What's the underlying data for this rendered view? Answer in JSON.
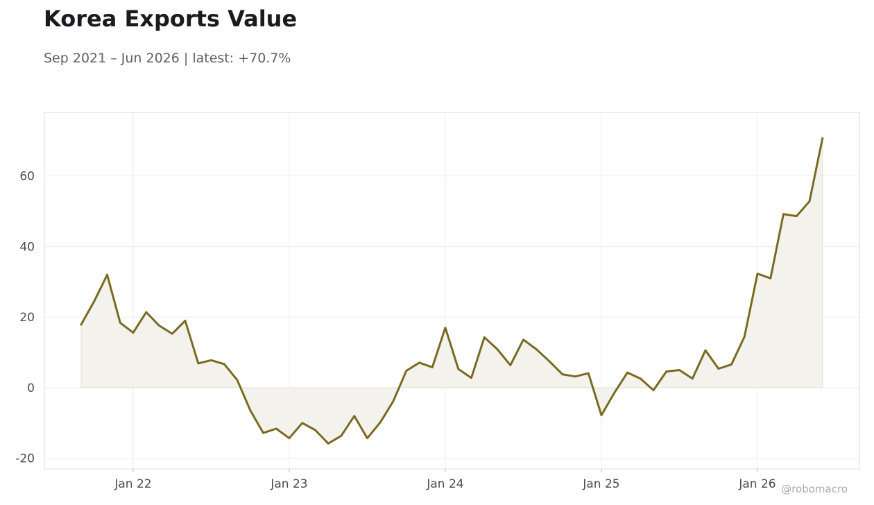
{
  "header": {
    "title": "Korea Exports Value",
    "subtitle": "Sep 2021 – Jun 2026 | latest: +70.7%"
  },
  "watermark": "@robomacro",
  "colors": {
    "line": "#7a6a21",
    "fill": "#f4f2ed",
    "grid": "#ececec",
    "frame": "#dddddd"
  },
  "chart_data": {
    "type": "area",
    "x_start": "2021-09",
    "x": [
      "2021-09",
      "2021-10",
      "2021-11",
      "2021-12",
      "2022-01",
      "2022-02",
      "2022-03",
      "2022-04",
      "2022-05",
      "2022-06",
      "2022-07",
      "2022-08",
      "2022-09",
      "2022-10",
      "2022-11",
      "2022-12",
      "2023-01",
      "2023-02",
      "2023-03",
      "2023-04",
      "2023-05",
      "2023-06",
      "2023-07",
      "2023-08",
      "2023-09",
      "2023-10",
      "2023-11",
      "2023-12",
      "2024-01",
      "2024-02",
      "2024-03",
      "2024-04",
      "2024-05",
      "2024-06",
      "2024-07",
      "2024-08",
      "2024-09",
      "2024-10",
      "2024-11",
      "2024-12",
      "2025-01",
      "2025-02",
      "2025-03",
      "2025-04",
      "2025-05",
      "2025-06",
      "2025-07",
      "2025-08",
      "2025-09",
      "2025-10",
      "2025-11",
      "2025-12",
      "2026-01",
      "2026-02",
      "2026-03",
      "2026-04",
      "2026-05",
      "2026-06"
    ],
    "values": [
      17.9,
      24.5,
      32.0,
      18.4,
      15.6,
      21.4,
      17.6,
      15.3,
      19.0,
      6.9,
      7.8,
      6.7,
      2.2,
      -6.4,
      -12.8,
      -11.6,
      -14.3,
      -10.0,
      -12.0,
      -15.8,
      -13.6,
      -8.0,
      -14.3,
      -9.8,
      -3.8,
      4.8,
      7.1,
      5.8,
      17.0,
      5.3,
      2.8,
      14.3,
      10.9,
      6.4,
      13.6,
      10.9,
      7.5,
      3.8,
      3.2,
      4.1,
      -7.8,
      -1.4,
      4.3,
      2.6,
      -0.7,
      4.6,
      5.0,
      2.6,
      10.6,
      5.4,
      6.6,
      14.5,
      32.3,
      31.0,
      49.2,
      48.6,
      52.8,
      70.7
    ],
    "ylim": [
      -23,
      78
    ],
    "yticks": [
      -20,
      0,
      20,
      40,
      60
    ],
    "ytick_labels": [
      "-20",
      "0",
      "20",
      "40",
      "60"
    ],
    "xtick_dates": [
      "2022-01",
      "2023-01",
      "2024-01",
      "2025-01",
      "2026-01"
    ],
    "xtick_labels": [
      "Jan 22",
      "Jan 23",
      "Jan 24",
      "Jan 25",
      "Jan 26"
    ],
    "grid": true,
    "xlabel": "",
    "ylabel": ""
  }
}
